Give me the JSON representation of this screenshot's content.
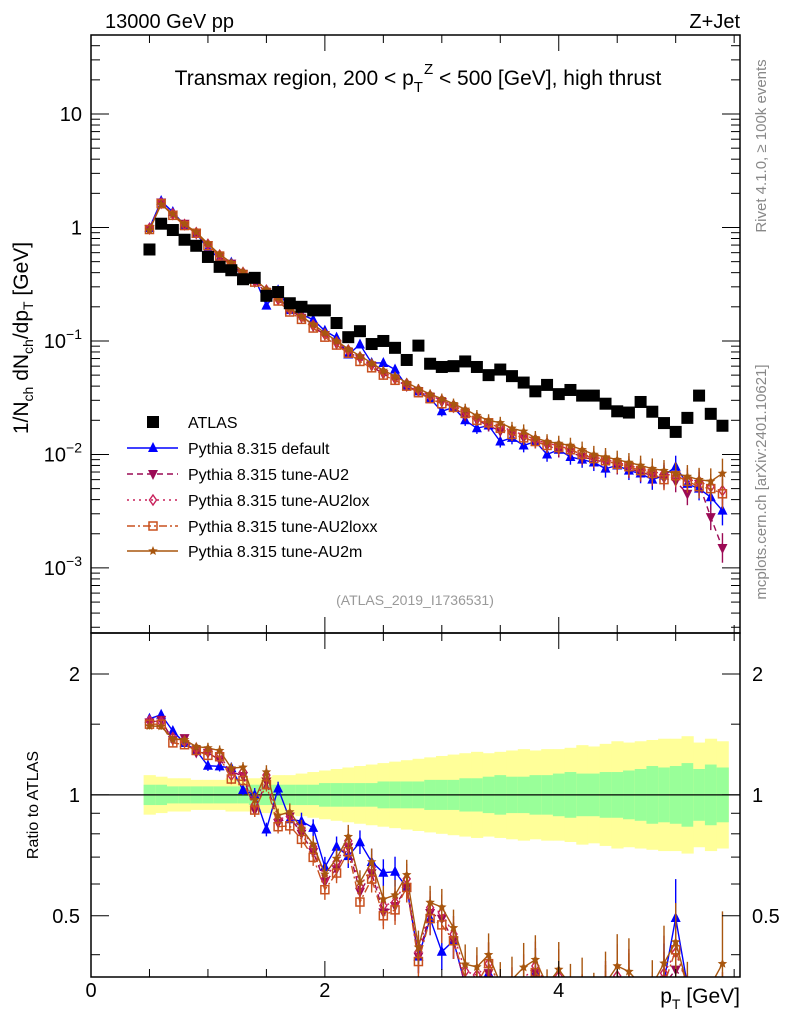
{
  "header": {
    "left": "13000 GeV pp",
    "right": "Z+Jet"
  },
  "side_text": {
    "rivet": "Rivet 4.1.0, ≥ 100k events",
    "mcplots": "mcplots.cern.ch [arXiv:2401.10621]"
  },
  "analysis_id": "(ATLAS_2019_I1736531)",
  "chart_data": {
    "type": "scatter",
    "title": {
      "pre": "Transmax region, 200 < p",
      "sub": "T",
      "sup": "Z",
      "post": " < 500 [GeV], high thrust"
    },
    "xlabel": {
      "main": "p",
      "sub": "T",
      "post": " [GeV]"
    },
    "ylabel": {
      "p1": "1/N",
      "s1": "ch",
      "p2": " dN",
      "s2": "ch",
      "p3": "/dp",
      "s3": "T",
      "p4": " [GeV]"
    },
    "ratio_ylabel": "Ratio to ATLAS",
    "xlim": [
      0,
      5.55
    ],
    "ylim": [
      0.000267,
      49.7
    ],
    "yscale": "log",
    "ratio_ylim": [
      0.352,
      2.53
    ],
    "xticks": [
      {
        "v": 0,
        "label": "0"
      },
      {
        "v": 2,
        "label": "2"
      },
      {
        "v": 4,
        "label": "4"
      }
    ],
    "yticks": [
      {
        "v": 0.001,
        "base": "10",
        "exp": "−3"
      },
      {
        "v": 0.01,
        "base": "10",
        "exp": "−2"
      },
      {
        "v": 0.1,
        "base": "10",
        "exp": "−1"
      },
      {
        "v": 1,
        "base": "1",
        "exp": ""
      },
      {
        "v": 10,
        "base": "10",
        "exp": ""
      }
    ],
    "ratio_yticks": [
      {
        "v": 0.5,
        "label": "0.5"
      },
      {
        "v": 1,
        "label": "1"
      },
      {
        "v": 2,
        "label": "2"
      }
    ],
    "x": [
      0.5,
      0.6,
      0.7,
      0.8,
      0.9,
      1.0,
      1.1,
      1.2,
      1.3,
      1.4,
      1.5,
      1.6,
      1.7,
      1.8,
      1.9,
      2.0,
      2.1,
      2.2,
      2.3,
      2.4,
      2.5,
      2.6,
      2.7,
      2.8,
      2.9,
      3.0,
      3.1,
      3.2,
      3.3,
      3.4,
      3.5,
      3.6,
      3.7,
      3.8,
      3.9,
      4.0,
      4.1,
      4.2,
      4.3,
      4.4,
      4.5,
      4.6,
      4.7,
      4.8,
      4.9,
      5.0,
      5.1,
      5.2,
      5.3,
      5.4
    ],
    "bin_width": 0.1,
    "data": {
      "name": "ATLAS",
      "color": "#000000",
      "values": [
        0.64,
        1.08,
        0.95,
        0.78,
        0.69,
        0.55,
        0.45,
        0.42,
        0.35,
        0.36,
        0.25,
        0.27,
        0.215,
        0.2,
        0.186,
        0.186,
        0.144,
        0.108,
        0.122,
        0.094,
        0.1,
        0.087,
        0.068,
        0.091,
        0.063,
        0.059,
        0.06,
        0.066,
        0.059,
        0.05,
        0.056,
        0.049,
        0.043,
        0.036,
        0.041,
        0.034,
        0.037,
        0.033,
        0.033,
        0.028,
        0.024,
        0.0234,
        0.029,
        0.0238,
        0.0189,
        0.0158,
        0.021,
        0.033,
        0.0228,
        0.0179
      ],
      "stat_rel_err": [
        0.06,
        0.06,
        0.05,
        0.05,
        0.05,
        0.05,
        0.05,
        0.05,
        0.05,
        0.06,
        0.06,
        0.06,
        0.06,
        0.06,
        0.06,
        0.07,
        0.07,
        0.07,
        0.07,
        0.07,
        0.08,
        0.08,
        0.08,
        0.08,
        0.09,
        0.09,
        0.09,
        0.1,
        0.1,
        0.11,
        0.12,
        0.11,
        0.11,
        0.12,
        0.12,
        0.13,
        0.14,
        0.13,
        0.13,
        0.14,
        0.14,
        0.15,
        0.16,
        0.18,
        0.17,
        0.18,
        0.2,
        0.16,
        0.19,
        0.17
      ],
      "total_rel_err": [
        0.12,
        0.11,
        0.1,
        0.1,
        0.09,
        0.09,
        0.09,
        0.1,
        0.1,
        0.1,
        0.11,
        0.12,
        0.12,
        0.13,
        0.14,
        0.15,
        0.16,
        0.17,
        0.18,
        0.19,
        0.2,
        0.21,
        0.22,
        0.23,
        0.24,
        0.25,
        0.26,
        0.27,
        0.28,
        0.27,
        0.28,
        0.29,
        0.3,
        0.29,
        0.3,
        0.3,
        0.31,
        0.33,
        0.32,
        0.34,
        0.36,
        0.35,
        0.36,
        0.37,
        0.38,
        0.38,
        0.4,
        0.35,
        0.38,
        0.36
      ],
      "band_colors": {
        "stat": "#99ff99",
        "total": "#ffff99"
      }
    },
    "mc_rel_err": [
      0.02,
      0.02,
      0.02,
      0.02,
      0.02,
      0.03,
      0.03,
      0.03,
      0.03,
      0.04,
      0.04,
      0.04,
      0.05,
      0.05,
      0.05,
      0.06,
      0.06,
      0.07,
      0.07,
      0.08,
      0.08,
      0.09,
      0.09,
      0.1,
      0.1,
      0.11,
      0.11,
      0.12,
      0.12,
      0.13,
      0.13,
      0.14,
      0.15,
      0.15,
      0.16,
      0.17,
      0.17,
      0.18,
      0.19,
      0.2,
      0.2,
      0.21,
      0.22,
      0.23,
      0.24,
      0.25,
      0.26,
      0.27,
      0.3,
      0.35
    ],
    "series": [
      {
        "name": "Pythia 8.315 default",
        "color": "#0000ff",
        "dash": "",
        "marker": "triangle-up",
        "values": [
          0.99,
          1.71,
          1.37,
          1.05,
          0.89,
          0.65,
          0.53,
          0.49,
          0.36,
          0.36,
          0.205,
          0.28,
          0.187,
          0.172,
          0.154,
          0.123,
          0.107,
          0.076,
          0.093,
          0.064,
          0.064,
          0.056,
          0.04,
          0.036,
          0.031,
          0.024,
          0.026,
          0.02,
          0.017,
          0.018,
          0.013,
          0.014,
          0.012,
          0.013,
          0.01,
          0.011,
          0.0095,
          0.009,
          0.0085,
          0.0075,
          0.008,
          0.0072,
          0.0068,
          0.006,
          0.0065,
          0.0078,
          0.0055,
          0.005,
          0.0042,
          0.0032
        ]
      },
      {
        "name": "Pythia 8.315 tune-AU2",
        "color": "#9c0a55",
        "dash": "6,4",
        "marker": "triangle-down",
        "values": [
          0.97,
          1.66,
          1.3,
          1.08,
          0.88,
          0.7,
          0.55,
          0.48,
          0.39,
          0.33,
          0.27,
          0.23,
          0.19,
          0.16,
          0.134,
          0.113,
          0.094,
          0.08,
          0.07,
          0.06,
          0.051,
          0.046,
          0.04,
          0.036,
          0.032,
          0.029,
          0.026,
          0.022,
          0.02,
          0.018,
          0.016,
          0.015,
          0.014,
          0.013,
          0.012,
          0.011,
          0.0105,
          0.0095,
          0.009,
          0.0085,
          0.008,
          0.0075,
          0.007,
          0.0065,
          0.0062,
          0.0058,
          0.0045,
          0.0055,
          0.0028,
          0.0015
        ]
      },
      {
        "name": "Pythia 8.315 tune-AU2lox",
        "color": "#c8205a",
        "dash": "2,4",
        "marker": "diamond-open",
        "values": [
          0.98,
          1.64,
          1.32,
          1.06,
          0.9,
          0.71,
          0.57,
          0.47,
          0.4,
          0.34,
          0.28,
          0.235,
          0.19,
          0.165,
          0.138,
          0.115,
          0.098,
          0.083,
          0.072,
          0.062,
          0.053,
          0.047,
          0.042,
          0.037,
          0.033,
          0.03,
          0.027,
          0.024,
          0.021,
          0.019,
          0.018,
          0.016,
          0.015,
          0.0135,
          0.0125,
          0.012,
          0.011,
          0.01,
          0.0095,
          0.009,
          0.0085,
          0.008,
          0.0075,
          0.007,
          0.0068,
          0.0064,
          0.006,
          0.0058,
          0.0052,
          0.0048
        ]
      },
      {
        "name": "Pythia 8.315 tune-AU2loxx",
        "color": "#c8501e",
        "dash": "8,3,2,3",
        "marker": "square-open",
        "values": [
          0.96,
          1.62,
          1.28,
          1.04,
          0.89,
          0.69,
          0.56,
          0.46,
          0.38,
          0.33,
          0.265,
          0.225,
          0.18,
          0.155,
          0.13,
          0.108,
          0.092,
          0.078,
          0.066,
          0.058,
          0.05,
          0.045,
          0.04,
          0.035,
          0.031,
          0.028,
          0.026,
          0.023,
          0.02,
          0.019,
          0.017,
          0.015,
          0.014,
          0.013,
          0.012,
          0.0115,
          0.011,
          0.01,
          0.0092,
          0.0088,
          0.0082,
          0.0078,
          0.0072,
          0.0068,
          0.006,
          0.0065,
          0.0058,
          0.0052,
          0.005,
          0.0045
        ]
      },
      {
        "name": "Pythia 8.315 tune-AU2m",
        "color": "#a8560f",
        "dash": "",
        "marker": "star",
        "values": [
          0.95,
          1.6,
          1.31,
          1.07,
          0.91,
          0.72,
          0.58,
          0.49,
          0.41,
          0.35,
          0.285,
          0.24,
          0.195,
          0.165,
          0.14,
          0.118,
          0.1,
          0.085,
          0.074,
          0.064,
          0.055,
          0.049,
          0.043,
          0.038,
          0.034,
          0.031,
          0.028,
          0.025,
          0.022,
          0.02,
          0.019,
          0.017,
          0.016,
          0.014,
          0.013,
          0.0125,
          0.012,
          0.011,
          0.01,
          0.0095,
          0.009,
          0.0085,
          0.008,
          0.0075,
          0.0072,
          0.0068,
          0.0064,
          0.006,
          0.0058,
          0.0068
        ]
      }
    ],
    "legend_position": "bottom-left"
  }
}
